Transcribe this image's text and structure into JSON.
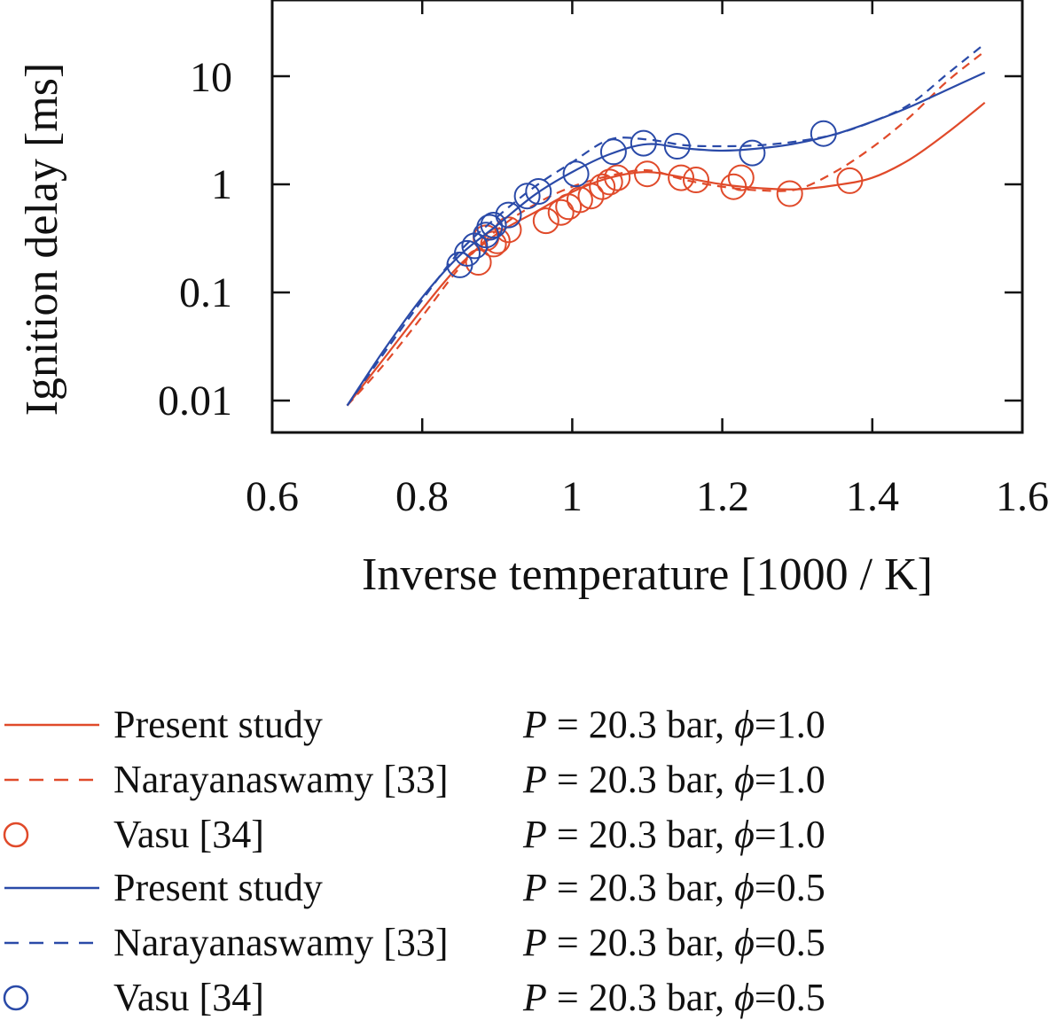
{
  "chart_data": {
    "type": "line",
    "xlabel": "Inverse temperature [1000 / K]",
    "ylabel": "Ignition delay [ms]",
    "xlim": [
      0.6,
      1.6
    ],
    "ylim": [
      0.005,
      50
    ],
    "yscale": "log",
    "x_ticks": [
      "0.6",
      "0.8",
      "1",
      "1.2",
      "1.4",
      "1.6"
    ],
    "y_ticks": [
      "0.01",
      "0.1",
      "1",
      "10"
    ],
    "colors": {
      "phi_1_0": "#e04a2a",
      "phi_0_5": "#2a4aa8"
    },
    "series": [
      {
        "name": "Present study",
        "condition": "= 20.3 bar,",
        "phi": "=1.0",
        "style": "solid",
        "color": "#e04a2a",
        "x": [
          0.7,
          0.75,
          0.8,
          0.85,
          0.9,
          0.95,
          1.0,
          1.05,
          1.1,
          1.15,
          1.2,
          1.25,
          1.3,
          1.35,
          1.4,
          1.45,
          1.5,
          1.55
        ],
        "y": [
          0.009,
          0.025,
          0.07,
          0.18,
          0.35,
          0.55,
          0.85,
          1.15,
          1.3,
          1.15,
          1.0,
          0.92,
          0.9,
          0.98,
          1.15,
          1.7,
          3.0,
          5.7
        ]
      },
      {
        "name": "Narayanaswamy [33]",
        "condition": "= 20.3 bar,",
        "phi": "=1.0",
        "style": "dashed",
        "color": "#e04a2a",
        "x": [
          0.7,
          0.75,
          0.8,
          0.85,
          0.9,
          0.95,
          1.0,
          1.05,
          1.1,
          1.15,
          1.2,
          1.25,
          1.3,
          1.35,
          1.4,
          1.45,
          1.5,
          1.55
        ],
        "y": [
          0.009,
          0.022,
          0.06,
          0.17,
          0.38,
          0.65,
          0.95,
          1.2,
          1.35,
          1.1,
          0.95,
          0.88,
          0.9,
          1.3,
          2.2,
          4.2,
          9.0,
          17.0
        ]
      },
      {
        "name": "Vasu [34]",
        "condition": "= 20.3 bar,",
        "phi": "=1.0",
        "style": "markers",
        "color": "#e04a2a",
        "x": [
          0.875,
          0.885,
          0.895,
          0.9,
          0.915,
          0.965,
          0.985,
          0.995,
          1.01,
          1.025,
          1.04,
          1.05,
          1.06,
          1.1,
          1.145,
          1.165,
          1.215,
          1.225,
          1.29,
          1.37
        ],
        "y": [
          0.19,
          0.32,
          0.28,
          0.3,
          0.38,
          0.46,
          0.55,
          0.62,
          0.72,
          0.78,
          0.95,
          1.05,
          1.15,
          1.25,
          1.15,
          1.1,
          0.95,
          1.15,
          0.82,
          1.08
        ]
      },
      {
        "name": "Present study",
        "condition": "= 20.3 bar,",
        "phi": "=0.5",
        "style": "solid",
        "color": "#2a4aa8",
        "x": [
          0.7,
          0.75,
          0.8,
          0.85,
          0.9,
          0.95,
          1.0,
          1.05,
          1.1,
          1.15,
          1.2,
          1.25,
          1.3,
          1.35,
          1.4,
          1.45,
          1.5,
          1.55
        ],
        "y": [
          0.009,
          0.03,
          0.09,
          0.22,
          0.42,
          0.8,
          1.3,
          1.9,
          2.35,
          2.15,
          2.05,
          2.15,
          2.4,
          2.9,
          3.8,
          5.2,
          7.5,
          10.8
        ]
      },
      {
        "name": "Narayanaswamy [33]",
        "condition": "= 20.3 bar,",
        "phi": "=0.5",
        "style": "dashed",
        "color": "#2a4aa8",
        "x": [
          0.7,
          0.75,
          0.8,
          0.85,
          0.9,
          0.95,
          1.0,
          1.05,
          1.1,
          1.15,
          1.2,
          1.25,
          1.3,
          1.35,
          1.4,
          1.45,
          1.5,
          1.55
        ],
        "y": [
          0.009,
          0.028,
          0.085,
          0.24,
          0.5,
          0.95,
          1.6,
          2.6,
          2.6,
          2.3,
          2.25,
          2.3,
          2.5,
          2.9,
          3.8,
          5.5,
          10.5,
          20.0
        ]
      },
      {
        "name": "Vasu [34]",
        "condition": "= 20.3 bar,",
        "phi": "=0.5",
        "style": "markers",
        "color": "#2a4aa8",
        "x": [
          0.85,
          0.86,
          0.87,
          0.885,
          0.89,
          0.895,
          0.915,
          0.94,
          0.955,
          1.005,
          1.055,
          1.095,
          1.14,
          1.24,
          1.335
        ],
        "y": [
          0.18,
          0.23,
          0.27,
          0.34,
          0.4,
          0.42,
          0.52,
          0.78,
          0.86,
          1.25,
          2.0,
          2.4,
          2.25,
          1.95,
          2.95
        ]
      }
    ]
  }
}
